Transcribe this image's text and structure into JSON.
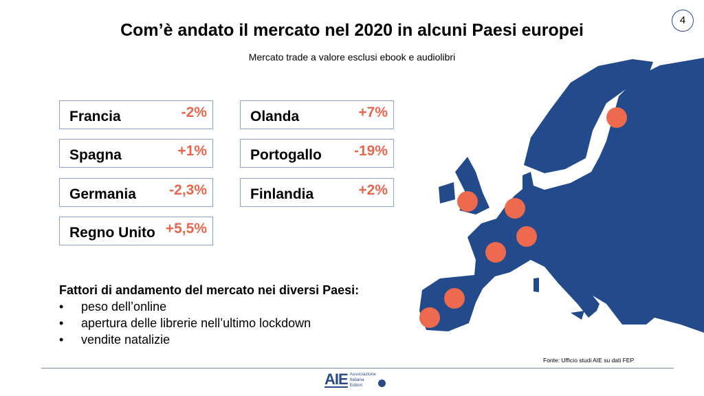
{
  "title": "Com’è andato il mercato nel 2020 in alcuni Paesi europei",
  "subtitle": "Mercato trade a valore esclusi ebook e audiolibri",
  "page_number": "4",
  "countries": [
    {
      "name": "Francia",
      "value": "-2%"
    },
    {
      "name": "Spagna",
      "value": "+1%"
    },
    {
      "name": "Germania",
      "value": "-2,3%"
    },
    {
      "name": "Regno Unito",
      "value": "+5,5%"
    },
    {
      "name": "Olanda",
      "value": "+7%"
    },
    {
      "name": "Portogallo",
      "value": "-19%"
    },
    {
      "name": "Finlandia",
      "value": "+2%"
    }
  ],
  "factors": {
    "heading": "Fattori di andamento del mercato nei diversi Paesi:",
    "items": [
      "peso dell’online",
      "apertura delle librerie nell’ultimo lockdown",
      "vendite natalizie"
    ]
  },
  "source": "Fonte: Ufficio studi AIE su dati FEP",
  "logo": {
    "mark": "AIE",
    "line1": "Associazione",
    "line2": "Italiana",
    "line3": "Editori"
  },
  "colors": {
    "map": "#234a8a",
    "dot": "#ee6a4e",
    "value": "#e8664c",
    "border": "#8ba0d2"
  }
}
